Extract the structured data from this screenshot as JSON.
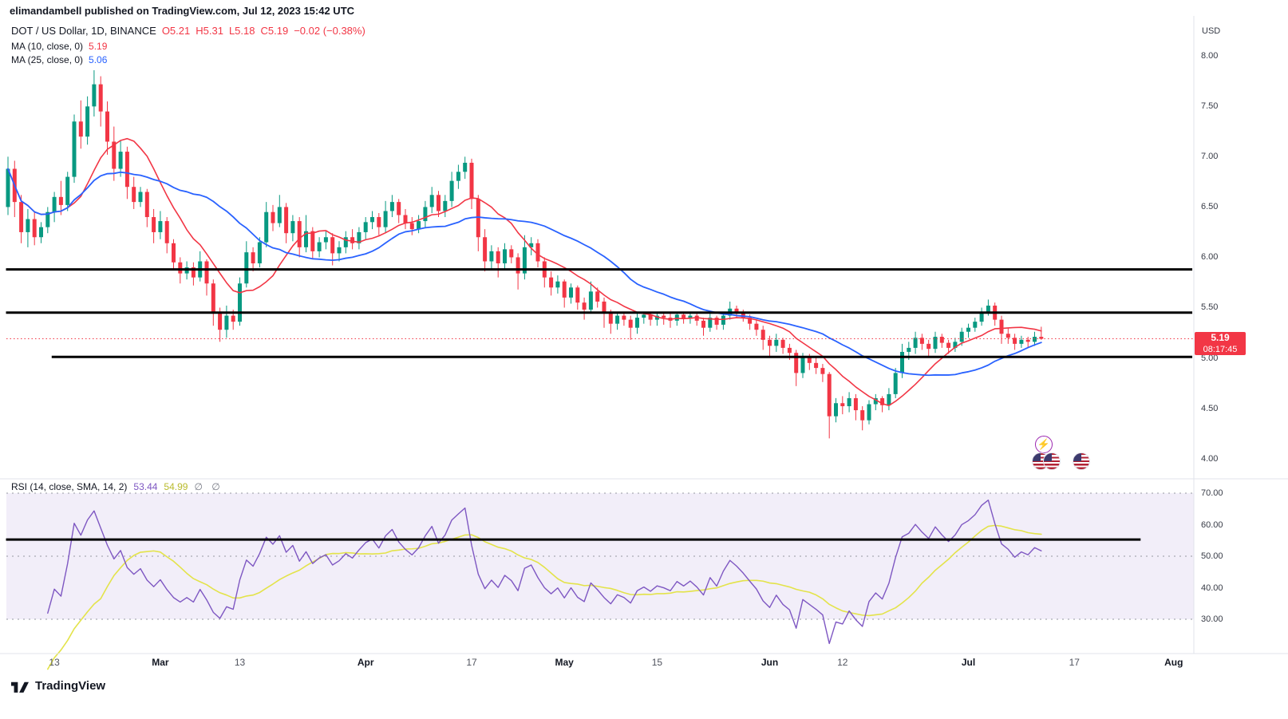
{
  "header": {
    "published_line": "elimandambell published on TradingView.com, Jul 12, 2023 15:42 UTC"
  },
  "legend": {
    "symbol": {
      "title": "DOT / US Dollar, 1D, BINANCE",
      "open": "O5.21",
      "high": "H5.31",
      "low": "L5.18",
      "close": "C5.19",
      "change": "−0.02 (−0.38%)"
    },
    "ma10": {
      "label": "MA (10, close, 0)",
      "value": "5.19"
    },
    "ma25": {
      "label": "MA (25, close, 0)",
      "value": "5.06"
    }
  },
  "rsi_legend": {
    "label": "RSI (14, close, SMA, 14, 2)",
    "value": "53.44",
    "sma_value": "54.99",
    "empty_markers": "∅ ∅"
  },
  "price_axis": {
    "currency": "USD",
    "ticks": [
      "8.00",
      "7.50",
      "7.00",
      "6.50",
      "6.00",
      "5.50",
      "5.00",
      "4.50",
      "4.00"
    ],
    "last_price_badge": {
      "price": "5.19",
      "countdown": "08:17:45"
    }
  },
  "rsi_axis": {
    "ticks": [
      "70.00",
      "60.00",
      "50.00",
      "40.00",
      "30.00"
    ]
  },
  "time_axis": {
    "ticks": [
      {
        "label": "13",
        "day": 7,
        "major": false
      },
      {
        "label": "Mar",
        "day": 23,
        "major": true
      },
      {
        "label": "13",
        "day": 35,
        "major": false
      },
      {
        "label": "Apr",
        "day": 54,
        "major": true
      },
      {
        "label": "17",
        "day": 70,
        "major": false
      },
      {
        "label": "May",
        "day": 84,
        "major": true
      },
      {
        "label": "15",
        "day": 98,
        "major": false
      },
      {
        "label": "Jun",
        "day": 115,
        "major": true
      },
      {
        "label": "12",
        "day": 126,
        "major": false
      },
      {
        "label": "Jul",
        "day": 145,
        "major": true
      },
      {
        "label": "17",
        "day": 161,
        "major": false
      },
      {
        "label": "Aug",
        "day": 176,
        "major": true
      }
    ]
  },
  "footer": {
    "brand": "TradingView"
  },
  "colors": {
    "up": "#089981",
    "down": "#F23645",
    "ma10": "#F23645",
    "ma25": "#2962FF",
    "rsi": "#7E57C2",
    "rsi_sma": "#e3e34a",
    "rsi_band": "rgba(126,87,194,0.10)",
    "trendline": "#000000",
    "axis_text": "#363a45",
    "badge_bg": "#F23645"
  },
  "chart_data": {
    "type": "candlestick",
    "symbol": "DOT/USD",
    "interval": "1D",
    "exchange": "BINANCE",
    "title": "DOT / US Dollar, 1D, BINANCE",
    "start_date": "2023-02-06",
    "ohlc_format": "[open, high, low, close], one bar per day from start_date (values in USD, estimated from plot)",
    "price_range_visible": [
      3.83,
      8.32
    ],
    "price_ticks": [
      8.0,
      7.5,
      7.0,
      6.5,
      6.0,
      5.5,
      5.0,
      4.5,
      4.0
    ],
    "last_price": 5.19,
    "last_bar": {
      "open": 5.21,
      "high": 5.31,
      "low": 5.18,
      "close": 5.19,
      "change": -0.02,
      "change_pct": -0.38
    },
    "ohlc": [
      [
        6.5,
        7.0,
        6.42,
        6.88
      ],
      [
        6.88,
        6.96,
        6.4,
        6.55
      ],
      [
        6.55,
        6.62,
        6.14,
        6.25
      ],
      [
        6.25,
        6.48,
        6.1,
        6.38
      ],
      [
        6.38,
        6.45,
        6.12,
        6.2
      ],
      [
        6.2,
        6.35,
        6.14,
        6.3
      ],
      [
        6.3,
        6.5,
        6.24,
        6.45
      ],
      [
        6.45,
        6.65,
        6.35,
        6.6
      ],
      [
        6.6,
        6.76,
        6.42,
        6.52
      ],
      [
        6.52,
        6.85,
        6.46,
        6.8
      ],
      [
        6.8,
        7.42,
        6.74,
        7.35
      ],
      [
        7.35,
        7.56,
        7.08,
        7.2
      ],
      [
        7.2,
        7.6,
        7.12,
        7.5
      ],
      [
        7.5,
        7.86,
        7.4,
        7.72
      ],
      [
        7.72,
        7.8,
        7.3,
        7.45
      ],
      [
        7.45,
        7.55,
        7.02,
        7.15
      ],
      [
        7.15,
        7.3,
        6.76,
        6.88
      ],
      [
        6.88,
        7.16,
        6.8,
        7.05
      ],
      [
        7.05,
        7.1,
        6.58,
        6.7
      ],
      [
        6.7,
        6.8,
        6.48,
        6.55
      ],
      [
        6.55,
        6.7,
        6.5,
        6.65
      ],
      [
        6.65,
        6.68,
        6.3,
        6.4
      ],
      [
        6.4,
        6.48,
        6.14,
        6.25
      ],
      [
        6.25,
        6.46,
        6.18,
        6.36
      ],
      [
        6.36,
        6.4,
        6.04,
        6.14
      ],
      [
        6.14,
        6.18,
        5.88,
        5.95
      ],
      [
        5.95,
        6.0,
        5.74,
        5.84
      ],
      [
        5.84,
        5.96,
        5.78,
        5.9
      ],
      [
        5.9,
        5.95,
        5.72,
        5.8
      ],
      [
        5.8,
        6.06,
        5.76,
        5.96
      ],
      [
        5.96,
        5.98,
        5.62,
        5.74
      ],
      [
        5.74,
        5.78,
        5.32,
        5.44
      ],
      [
        5.44,
        5.5,
        5.16,
        5.28
      ],
      [
        5.28,
        5.52,
        5.2,
        5.42
      ],
      [
        5.42,
        5.48,
        5.28,
        5.36
      ],
      [
        5.36,
        5.8,
        5.32,
        5.74
      ],
      [
        5.74,
        6.16,
        5.7,
        6.05
      ],
      [
        6.05,
        6.1,
        5.86,
        5.94
      ],
      [
        5.94,
        6.2,
        5.9,
        6.15
      ],
      [
        6.15,
        6.55,
        6.1,
        6.45
      ],
      [
        6.45,
        6.52,
        6.26,
        6.34
      ],
      [
        6.34,
        6.62,
        6.3,
        6.5
      ],
      [
        6.5,
        6.54,
        6.14,
        6.24
      ],
      [
        6.24,
        6.42,
        6.16,
        6.36
      ],
      [
        6.36,
        6.4,
        6.0,
        6.1
      ],
      [
        6.1,
        6.42,
        6.05,
        6.26
      ],
      [
        6.26,
        6.3,
        5.98,
        6.06
      ],
      [
        6.06,
        6.2,
        6.0,
        6.15
      ],
      [
        6.15,
        6.26,
        6.08,
        6.2
      ],
      [
        6.2,
        6.24,
        5.92,
        6.04
      ],
      [
        6.04,
        6.16,
        5.96,
        6.1
      ],
      [
        6.1,
        6.26,
        6.04,
        6.2
      ],
      [
        6.2,
        6.28,
        6.08,
        6.14
      ],
      [
        6.14,
        6.3,
        6.08,
        6.25
      ],
      [
        6.25,
        6.4,
        6.18,
        6.35
      ],
      [
        6.35,
        6.46,
        6.28,
        6.4
      ],
      [
        6.4,
        6.44,
        6.22,
        6.3
      ],
      [
        6.3,
        6.56,
        6.24,
        6.46
      ],
      [
        6.46,
        6.62,
        6.4,
        6.55
      ],
      [
        6.55,
        6.58,
        6.34,
        6.42
      ],
      [
        6.42,
        6.48,
        6.28,
        6.34
      ],
      [
        6.34,
        6.4,
        6.22,
        6.28
      ],
      [
        6.28,
        6.42,
        6.24,
        6.36
      ],
      [
        6.36,
        6.56,
        6.3,
        6.5
      ],
      [
        6.5,
        6.7,
        6.44,
        6.62
      ],
      [
        6.62,
        6.66,
        6.4,
        6.46
      ],
      [
        6.46,
        6.62,
        6.4,
        6.56
      ],
      [
        6.56,
        6.85,
        6.5,
        6.76
      ],
      [
        6.76,
        6.92,
        6.68,
        6.85
      ],
      [
        6.85,
        7.0,
        6.78,
        6.94
      ],
      [
        6.94,
        6.98,
        6.48,
        6.58
      ],
      [
        6.58,
        6.62,
        6.06,
        6.2
      ],
      [
        6.2,
        6.28,
        5.86,
        5.96
      ],
      [
        5.96,
        6.12,
        5.88,
        6.06
      ],
      [
        6.06,
        6.1,
        5.8,
        5.94
      ],
      [
        5.94,
        6.14,
        5.88,
        6.08
      ],
      [
        6.08,
        6.12,
        5.94,
        6.0
      ],
      [
        6.0,
        6.04,
        5.68,
        5.84
      ],
      [
        5.84,
        6.22,
        5.78,
        6.1
      ],
      [
        6.1,
        6.2,
        6.02,
        6.14
      ],
      [
        6.14,
        6.18,
        5.9,
        5.96
      ],
      [
        5.96,
        6.0,
        5.7,
        5.8
      ],
      [
        5.8,
        5.86,
        5.62,
        5.7
      ],
      [
        5.7,
        5.82,
        5.64,
        5.76
      ],
      [
        5.76,
        5.78,
        5.5,
        5.6
      ],
      [
        5.6,
        5.74,
        5.54,
        5.7
      ],
      [
        5.7,
        5.72,
        5.48,
        5.55
      ],
      [
        5.55,
        5.6,
        5.38,
        5.48
      ],
      [
        5.48,
        5.76,
        5.44,
        5.66
      ],
      [
        5.66,
        5.7,
        5.5,
        5.56
      ],
      [
        5.56,
        5.6,
        5.3,
        5.44
      ],
      [
        5.44,
        5.48,
        5.24,
        5.34
      ],
      [
        5.34,
        5.46,
        5.28,
        5.42
      ],
      [
        5.42,
        5.46,
        5.32,
        5.38
      ],
      [
        5.38,
        5.42,
        5.18,
        5.3
      ],
      [
        5.3,
        5.44,
        5.24,
        5.4
      ],
      [
        5.4,
        5.46,
        5.34,
        5.43
      ],
      [
        5.43,
        5.46,
        5.32,
        5.38
      ],
      [
        5.38,
        5.46,
        5.32,
        5.42
      ],
      [
        5.42,
        5.45,
        5.33,
        5.4
      ],
      [
        5.4,
        5.44,
        5.3,
        5.37
      ],
      [
        5.37,
        5.46,
        5.32,
        5.43
      ],
      [
        5.43,
        5.46,
        5.34,
        5.39
      ],
      [
        5.39,
        5.45,
        5.34,
        5.42
      ],
      [
        5.42,
        5.44,
        5.32,
        5.37
      ],
      [
        5.37,
        5.4,
        5.22,
        5.3
      ],
      [
        5.3,
        5.44,
        5.26,
        5.4
      ],
      [
        5.4,
        5.42,
        5.28,
        5.33
      ],
      [
        5.33,
        5.45,
        5.28,
        5.42
      ],
      [
        5.42,
        5.56,
        5.38,
        5.49
      ],
      [
        5.49,
        5.52,
        5.4,
        5.45
      ],
      [
        5.45,
        5.48,
        5.36,
        5.4
      ],
      [
        5.4,
        5.43,
        5.28,
        5.34
      ],
      [
        5.34,
        5.38,
        5.22,
        5.28
      ],
      [
        5.28,
        5.32,
        5.08,
        5.18
      ],
      [
        5.18,
        5.22,
        5.02,
        5.12
      ],
      [
        5.12,
        5.24,
        5.06,
        5.18
      ],
      [
        5.18,
        5.2,
        5.04,
        5.1
      ],
      [
        5.1,
        5.14,
        4.98,
        5.05
      ],
      [
        5.05,
        5.08,
        4.72,
        4.85
      ],
      [
        4.85,
        5.05,
        4.8,
        5.0
      ],
      [
        5.0,
        5.04,
        4.88,
        4.95
      ],
      [
        4.95,
        5.0,
        4.84,
        4.9
      ],
      [
        4.9,
        4.94,
        4.76,
        4.84
      ],
      [
        4.84,
        4.86,
        4.2,
        4.42
      ],
      [
        4.42,
        4.6,
        4.36,
        4.55
      ],
      [
        4.55,
        4.62,
        4.44,
        4.52
      ],
      [
        4.52,
        4.66,
        4.46,
        4.6
      ],
      [
        4.6,
        4.64,
        4.38,
        4.48
      ],
      [
        4.48,
        4.52,
        4.28,
        4.38
      ],
      [
        4.38,
        4.58,
        4.34,
        4.54
      ],
      [
        4.54,
        4.64,
        4.48,
        4.6
      ],
      [
        4.6,
        4.62,
        4.46,
        4.53
      ],
      [
        4.53,
        4.7,
        4.48,
        4.64
      ],
      [
        4.64,
        4.9,
        4.6,
        4.85
      ],
      [
        4.85,
        5.14,
        4.8,
        5.06
      ],
      [
        5.06,
        5.16,
        4.98,
        5.1
      ],
      [
        5.1,
        5.26,
        5.04,
        5.2
      ],
      [
        5.2,
        5.24,
        5.08,
        5.14
      ],
      [
        5.14,
        5.18,
        5.02,
        5.09
      ],
      [
        5.09,
        5.26,
        5.05,
        5.21
      ],
      [
        5.21,
        5.24,
        5.1,
        5.15
      ],
      [
        5.15,
        5.18,
        5.04,
        5.1
      ],
      [
        5.1,
        5.2,
        5.06,
        5.16
      ],
      [
        5.16,
        5.3,
        5.12,
        5.26
      ],
      [
        5.26,
        5.34,
        5.2,
        5.3
      ],
      [
        5.3,
        5.4,
        5.26,
        5.36
      ],
      [
        5.36,
        5.5,
        5.32,
        5.46
      ],
      [
        5.46,
        5.58,
        5.42,
        5.52
      ],
      [
        5.52,
        5.55,
        5.32,
        5.38
      ],
      [
        5.38,
        5.42,
        5.14,
        5.24
      ],
      [
        5.24,
        5.3,
        5.14,
        5.2
      ],
      [
        5.2,
        5.24,
        5.08,
        5.14
      ],
      [
        5.14,
        5.22,
        5.1,
        5.18
      ],
      [
        5.18,
        5.21,
        5.1,
        5.16
      ],
      [
        5.16,
        5.26,
        5.12,
        5.21
      ],
      [
        5.21,
        5.31,
        5.18,
        5.19
      ]
    ],
    "overlays": [
      {
        "name": "MA 10",
        "type": "sma",
        "period": 10,
        "source": "close",
        "color": "#F23645",
        "current_value": 5.19
      },
      {
        "name": "MA 25",
        "type": "sma",
        "period": 25,
        "source": "close",
        "color": "#2962FF",
        "current_value": 5.06
      }
    ],
    "trendlines": [
      {
        "price": 5.88,
        "from_day": -0.3,
        "to_day": 178.8
      },
      {
        "price": 5.45,
        "from_day": -0.3,
        "to_day": 178.8
      },
      {
        "price": 5.01,
        "from_day": 6.6,
        "to_day": 178.8
      }
    ],
    "rsi": {
      "name": "RSI",
      "period": 14,
      "source": "close",
      "sma_period": 14,
      "current_value": 53.44,
      "current_sma_value": 54.99,
      "band": [
        30,
        70
      ],
      "levels": [
        70,
        50,
        30
      ],
      "axis_ticks": [
        70,
        60,
        50,
        40,
        30
      ],
      "trendline": {
        "level": 55.3,
        "from_day": -0.3,
        "to_day": 171
      }
    }
  }
}
